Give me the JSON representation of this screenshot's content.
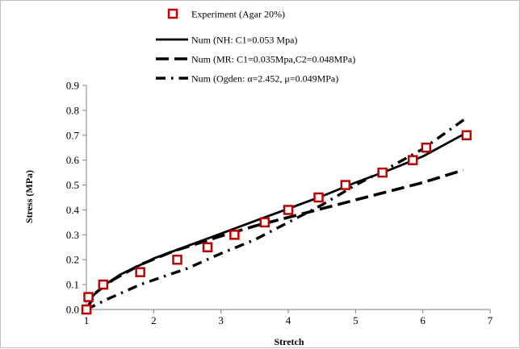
{
  "chart_data": {
    "type": "line",
    "title": "",
    "xlabel": "Stretch",
    "ylabel": "Stress (MPa)",
    "xlim": [
      1,
      7
    ],
    "ylim": [
      0,
      0.9
    ],
    "x_ticks": [
      "1",
      "2",
      "3",
      "4",
      "5",
      "6",
      "7"
    ],
    "y_ticks": [
      "0.0",
      "0.1",
      "0.2",
      "0.3",
      "0.4",
      "0.5",
      "0.6",
      "0.7",
      "0.8",
      "0.9"
    ],
    "grid": false,
    "legend_position": "top-center",
    "series": [
      {
        "name": "Experiment (Agar 20%)",
        "kind": "markers",
        "marker": "square",
        "color": "#c00000",
        "points": [
          [
            1.0,
            0.0
          ],
          [
            1.03,
            0.05
          ],
          [
            1.25,
            0.1
          ],
          [
            1.8,
            0.15
          ],
          [
            2.35,
            0.2
          ],
          [
            2.8,
            0.25
          ],
          [
            3.2,
            0.3
          ],
          [
            3.65,
            0.35
          ],
          [
            4.0,
            0.4
          ],
          [
            4.45,
            0.45
          ],
          [
            4.85,
            0.5
          ],
          [
            5.4,
            0.55
          ],
          [
            5.85,
            0.6
          ],
          [
            6.05,
            0.65
          ],
          [
            6.65,
            0.7
          ]
        ]
      },
      {
        "name": "Num (NH: C1=0.053 Mpa)",
        "kind": "line",
        "dash": "solid",
        "color": "#000000",
        "points": [
          [
            1.0,
            0.0
          ],
          [
            1.1,
            0.055
          ],
          [
            1.25,
            0.095
          ],
          [
            1.5,
            0.14
          ],
          [
            2.0,
            0.205
          ],
          [
            2.5,
            0.255
          ],
          [
            3.0,
            0.305
          ],
          [
            3.5,
            0.355
          ],
          [
            4.0,
            0.405
          ],
          [
            4.5,
            0.455
          ],
          [
            5.0,
            0.51
          ],
          [
            5.5,
            0.56
          ],
          [
            6.0,
            0.615
          ],
          [
            6.65,
            0.71
          ]
        ]
      },
      {
        "name": "Num (MR: C1=0.035Mpa,C2=0.048MPa)",
        "kind": "line",
        "dash": "long-dash",
        "color": "#000000",
        "points": [
          [
            1.0,
            0.0
          ],
          [
            1.15,
            0.07
          ],
          [
            1.4,
            0.12
          ],
          [
            1.8,
            0.18
          ],
          [
            2.3,
            0.235
          ],
          [
            3.0,
            0.295
          ],
          [
            3.5,
            0.335
          ],
          [
            4.0,
            0.37
          ],
          [
            4.5,
            0.405
          ],
          [
            5.0,
            0.44
          ],
          [
            5.5,
            0.475
          ],
          [
            6.0,
            0.51
          ],
          [
            6.6,
            0.56
          ]
        ]
      },
      {
        "name": "Num (Ogden: α=2.452, μ=0.049MPa)",
        "kind": "line",
        "dash": "dash-dot",
        "color": "#000000",
        "points": [
          [
            1.0,
            0.0
          ],
          [
            1.3,
            0.04
          ],
          [
            1.8,
            0.1
          ],
          [
            2.5,
            0.165
          ],
          [
            3.0,
            0.225
          ],
          [
            3.5,
            0.28
          ],
          [
            4.0,
            0.35
          ],
          [
            4.5,
            0.42
          ],
          [
            5.0,
            0.5
          ],
          [
            5.5,
            0.57
          ],
          [
            6.0,
            0.645
          ],
          [
            6.65,
            0.77
          ]
        ]
      }
    ]
  }
}
